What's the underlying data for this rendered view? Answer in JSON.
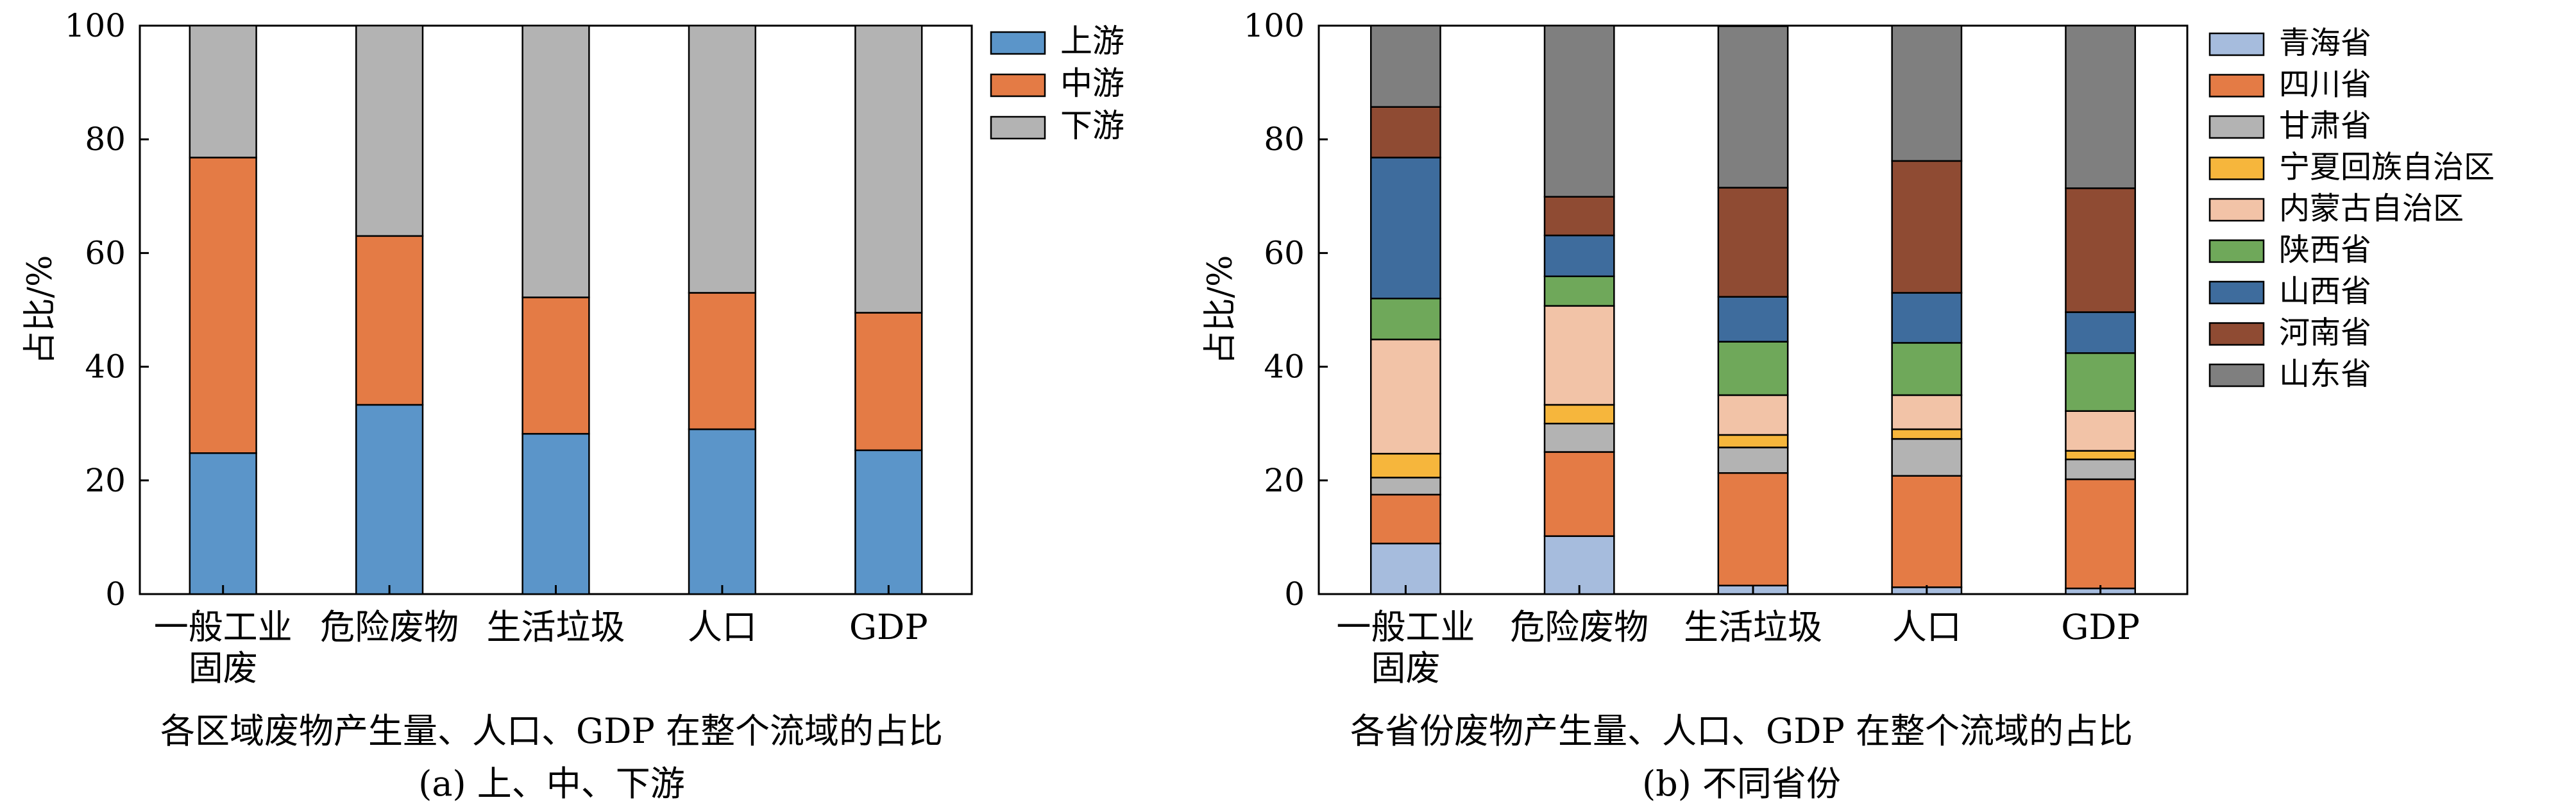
{
  "panels": [
    {
      "caption": "各区域废物产生量、人口、GDP 在整个流域的占比",
      "sublabel": "(a) 上、中、下游"
    },
    {
      "caption": "各省份废物产生量、人口、GDP 在整个流域的占比",
      "sublabel": "(b) 不同省份"
    }
  ],
  "chart_data": [
    {
      "type": "bar",
      "stacked": true,
      "ylabel": "占比/%",
      "xlabel": "",
      "ylim": [
        0,
        100
      ],
      "yticks": [
        0,
        20,
        40,
        60,
        80,
        100
      ],
      "categories": [
        [
          "一般工业",
          "固废"
        ],
        [
          "危险废物"
        ],
        [
          "生活垃圾"
        ],
        [
          "人口"
        ],
        [
          "GDP"
        ]
      ],
      "legend_position": "right-top",
      "series": [
        {
          "name": "上游",
          "color": "#5B95C9",
          "values": [
            24.8,
            33.3,
            28.2,
            29.0,
            25.3
          ]
        },
        {
          "name": "中游",
          "color": "#E47B45",
          "values": [
            52.0,
            29.7,
            24.0,
            24.0,
            24.2
          ]
        },
        {
          "name": "下游",
          "color": "#B3B3B3",
          "values": [
            23.2,
            37.0,
            47.8,
            47.0,
            50.5
          ]
        }
      ]
    },
    {
      "type": "bar",
      "stacked": true,
      "ylabel": "占比/%",
      "xlabel": "",
      "ylim": [
        0,
        100
      ],
      "yticks": [
        0,
        20,
        40,
        60,
        80,
        100
      ],
      "categories": [
        [
          "一般工业",
          "固废"
        ],
        [
          "危险废物"
        ],
        [
          "生活垃圾"
        ],
        [
          "人口"
        ],
        [
          "GDP"
        ]
      ],
      "legend_position": "right-top",
      "series": [
        {
          "name": "青海省",
          "color": "#A6BCDD",
          "values": [
            8.9,
            10.2,
            1.5,
            1.2,
            1.0
          ]
        },
        {
          "name": "四川省",
          "color": "#E47B45",
          "values": [
            8.6,
            14.8,
            19.8,
            19.6,
            19.2
          ]
        },
        {
          "name": "甘肃省",
          "color": "#B3B3B3",
          "values": [
            3.0,
            5.0,
            4.5,
            6.5,
            3.5
          ]
        },
        {
          "name": "宁夏回族自治区",
          "color": "#F6B63C",
          "values": [
            4.2,
            3.3,
            2.2,
            1.7,
            1.5
          ]
        },
        {
          "name": "内蒙古自治区",
          "color": "#F2C3A7",
          "values": [
            20.1,
            17.4,
            7.0,
            6.0,
            7.0
          ]
        },
        {
          "name": "陕西省",
          "color": "#6FA85A",
          "values": [
            7.2,
            5.2,
            9.4,
            9.2,
            10.2
          ]
        },
        {
          "name": "山西省",
          "color": "#3E6C9D",
          "values": [
            24.8,
            7.2,
            7.9,
            8.8,
            7.2
          ]
        },
        {
          "name": "河南省",
          "color": "#8F4B33",
          "values": [
            8.9,
            6.8,
            19.2,
            23.2,
            21.8
          ]
        },
        {
          "name": "山东省",
          "color": "#7F7F7F",
          "values": [
            14.3,
            30.1,
            28.4,
            23.8,
            28.6
          ]
        }
      ]
    }
  ]
}
